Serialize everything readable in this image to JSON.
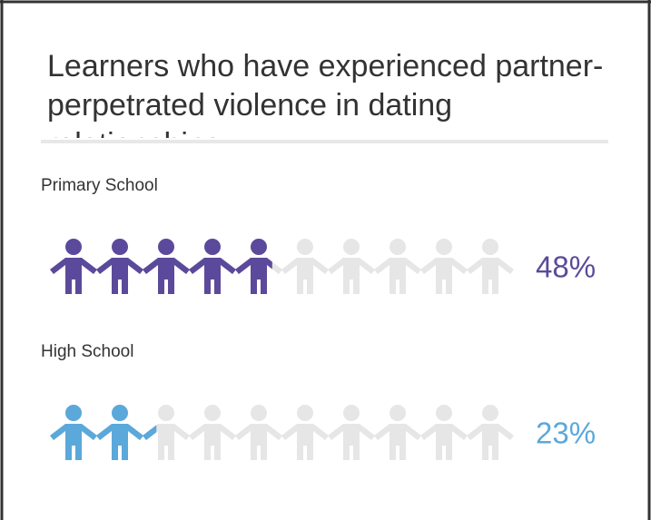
{
  "chart_data": {
    "type": "pictogram",
    "title": "Learners who have experienced partner-perpetrated violence in dating relationships",
    "categories": [
      "Primary School",
      "High School"
    ],
    "values": [
      48,
      23
    ],
    "value_labels": [
      "48%",
      "23%"
    ],
    "colors": [
      "#5b4a9b",
      "#5ba8da"
    ],
    "empty_color": "#e6e6e6",
    "xlim": [
      0,
      100
    ]
  }
}
